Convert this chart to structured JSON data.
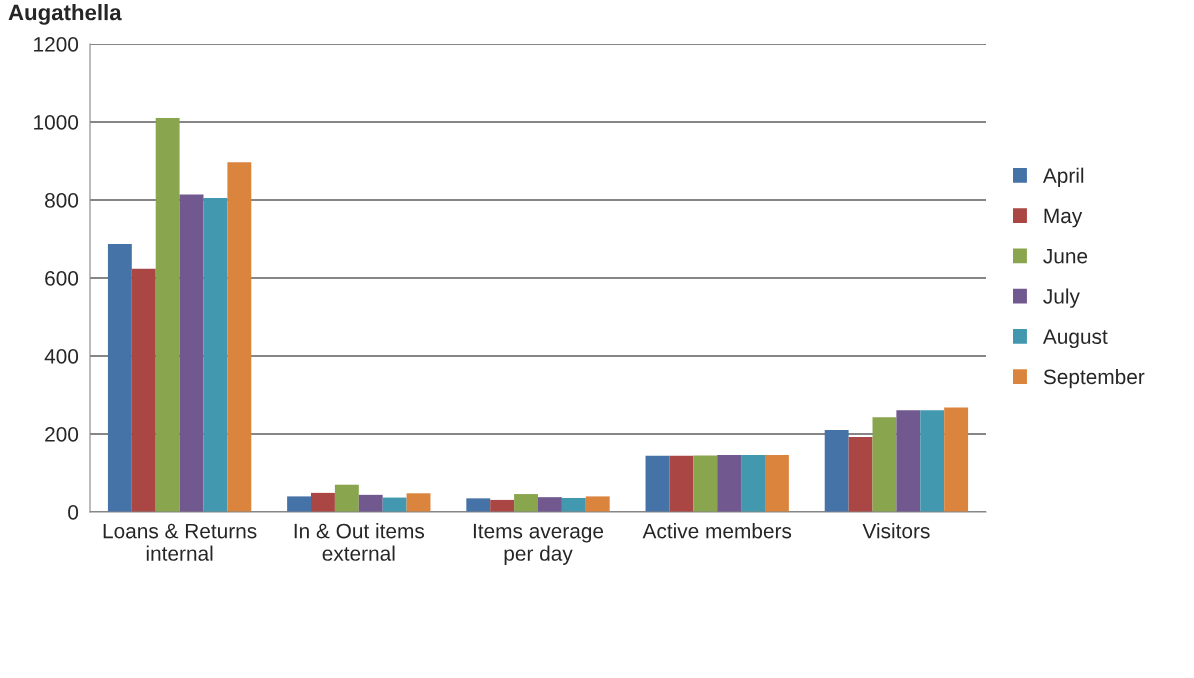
{
  "chart_data": {
    "type": "bar",
    "title": "Augathella",
    "categories": [
      "Loans & Returns\ninternal",
      "In & Out items\nexternal",
      "Items average\nper day",
      "Active members",
      "Visitors"
    ],
    "series": [
      {
        "name": "April",
        "color": "#4572a7",
        "values": [
          687,
          40,
          35,
          144,
          210
        ]
      },
      {
        "name": "May",
        "color": "#aa4643",
        "values": [
          624,
          49,
          31,
          144,
          192
        ]
      },
      {
        "name": "June",
        "color": "#89a54e",
        "values": [
          1010,
          70,
          46,
          145,
          243
        ]
      },
      {
        "name": "July",
        "color": "#71588f",
        "values": [
          814,
          44,
          38,
          146,
          261
        ]
      },
      {
        "name": "August",
        "color": "#4198af",
        "values": [
          805,
          37,
          36,
          146,
          261
        ]
      },
      {
        "name": "September",
        "color": "#db843d",
        "values": [
          897,
          48,
          40,
          146,
          268
        ]
      }
    ],
    "ylim": [
      0,
      1200
    ],
    "yticks": [
      0,
      200,
      400,
      600,
      800,
      1000,
      1200
    ],
    "grid": "y",
    "legend": "right"
  }
}
